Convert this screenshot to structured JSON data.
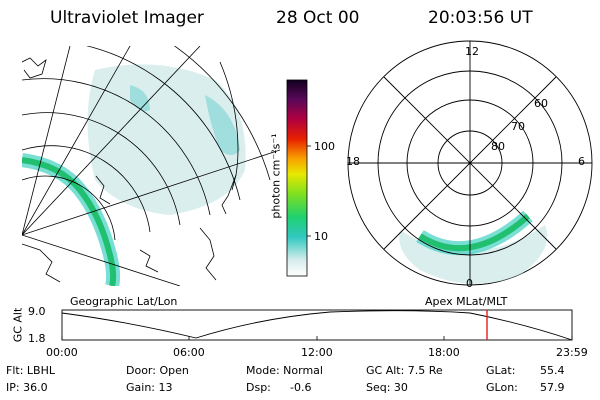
{
  "header": {
    "instrument": "Ultraviolet Imager",
    "date": "28 Oct 00",
    "time": "20:03:56 UT"
  },
  "colorbar": {
    "unit_label": "photon cm⁻²s⁻¹",
    "tick_labels": [
      "100",
      "10"
    ]
  },
  "polar_plot": {
    "mlt_labels": [
      "12",
      "18",
      "6",
      "0"
    ],
    "lat_labels": [
      "60",
      "70",
      "80"
    ]
  },
  "timeline": {
    "left_title": "Geographic Lat/Lon",
    "right_title": "Apex  MLat/MLT",
    "y_axis_label": "GC Alt",
    "y_ticks": [
      "9.0",
      "1.8"
    ],
    "x_ticks": [
      "00:00",
      "06:00",
      "12:00",
      "18:00",
      "23:59"
    ]
  },
  "info": {
    "flt": "Flt: LBHL",
    "door": "Door: Open",
    "mode": "Mode: Normal",
    "gc_alt": "GC Alt: 7.5 Re",
    "glat_label": "GLat:",
    "glat_value": "55.4",
    "ip": "IP: 36.0",
    "gain": "Gain: 13",
    "dsp_label": "Dsp:",
    "dsp_value": "-0.6",
    "seq": "Seq: 30",
    "glon_label": "GLon:",
    "glon_value": "57.9"
  },
  "colors": {
    "marker": "#e02020"
  }
}
